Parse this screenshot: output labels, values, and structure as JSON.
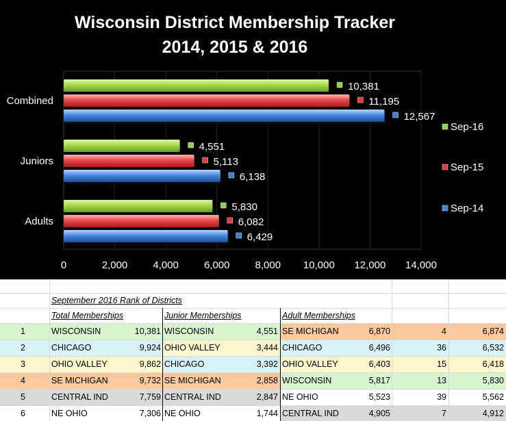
{
  "chart_data": {
    "type": "bar",
    "orientation": "horizontal",
    "title": "Wisconsin District Membership Tracker",
    "subtitle": "2014, 2015 & 2016",
    "categories": [
      "Combined",
      "Juniors",
      "Adults"
    ],
    "series": [
      {
        "name": "Sep-16",
        "color": "#92d050",
        "values": [
          10381,
          4551,
          5830
        ],
        "labels": [
          "10,381",
          "4,551",
          "5,830"
        ]
      },
      {
        "name": "Sep-15",
        "color": "#e03c3c",
        "values": [
          11195,
          5113,
          6082
        ],
        "labels": [
          "11,195",
          "5,113",
          "6,082"
        ]
      },
      {
        "name": "Sep-14",
        "color": "#3f7fd6",
        "values": [
          12567,
          6138,
          6429
        ],
        "labels": [
          "12,567",
          "6,138",
          "6,429"
        ]
      }
    ],
    "xlim": [
      0,
      14000
    ],
    "xticks": [
      "0",
      "2,000",
      "4,000",
      "6,000",
      "8,000",
      "10,000",
      "12,000",
      "14,000"
    ],
    "legend_position": "right"
  },
  "table": {
    "title": "Septemberr 2016 Rank of Districts",
    "headers": {
      "total": "Total Memberships",
      "junior": "Junior Memberships",
      "adult": "Adult Memberships"
    },
    "rows": [
      {
        "rank": "1",
        "total_name": "WISCONSIN",
        "total_val": "10,381",
        "junior_name": "WISCONSIN",
        "junior_val": "4,551",
        "adult_name": "SE MICHIGAN",
        "adult_val": "6,870",
        "adult_extra": "4",
        "adult_sum": "6,874"
      },
      {
        "rank": "2",
        "total_name": "CHICAGO",
        "total_val": "9,924",
        "junior_name": "OHIO VALLEY",
        "junior_val": "3,444",
        "adult_name": "CHICAGO",
        "adult_val": "6,496",
        "adult_extra": "36",
        "adult_sum": "6,532"
      },
      {
        "rank": "3",
        "total_name": "OHIO VALLEY",
        "total_val": "9,862",
        "junior_name": "CHICAGO",
        "junior_val": "3,392",
        "adult_name": "OHIO VALLEY",
        "adult_val": "6,403",
        "adult_extra": "15",
        "adult_sum": "6,418"
      },
      {
        "rank": "4",
        "total_name": "SE MICHIGAN",
        "total_val": "9,732",
        "junior_name": "SE MICHIGAN",
        "junior_val": "2,858",
        "adult_name": "WISCONSIN",
        "adult_val": "5,817",
        "adult_extra": "13",
        "adult_sum": "5,830"
      },
      {
        "rank": "5",
        "total_name": "CENTRAL IND",
        "total_val": "7,759",
        "junior_name": "CENTRAL IND",
        "junior_val": "2,847",
        "adult_name": "NE OHIO",
        "adult_val": "5,523",
        "adult_extra": "39",
        "adult_sum": "5,562"
      },
      {
        "rank": "6",
        "total_name": "NE OHIO",
        "total_val": "7,306",
        "junior_name": "NE OHIO",
        "junior_val": "1,744",
        "adult_name": "CENTRAL IND",
        "adult_val": "4,905",
        "adult_extra": "7",
        "adult_sum": "4,912"
      }
    ],
    "district_colors": {
      "WISCONSIN": "#d8f5d0",
      "CHICAGO": "#d6f2f7",
      "OHIO VALLEY": "#fbf6cc",
      "SE MICHIGAN": "#f9c89c",
      "CENTRAL IND": "#d9d9d9",
      "NE OHIO": "#ffffff"
    }
  }
}
